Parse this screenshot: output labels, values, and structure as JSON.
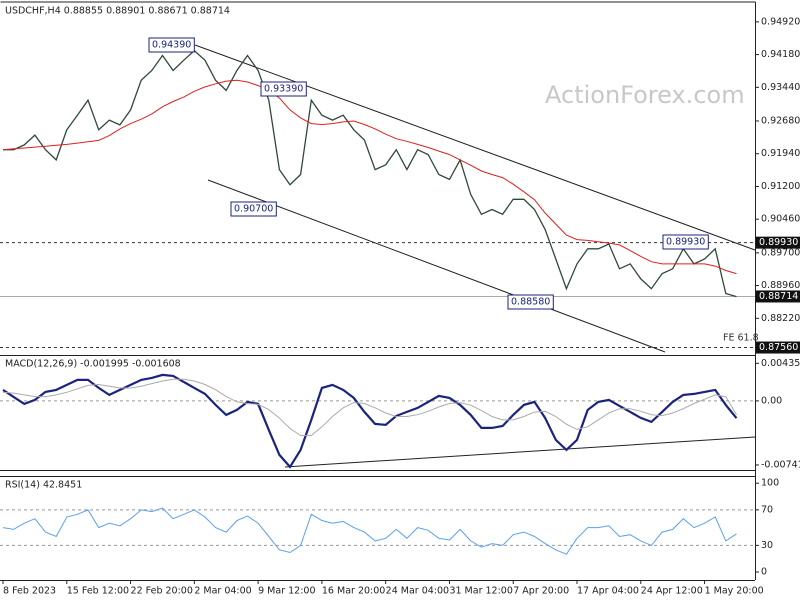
{
  "chart_data": [
    {
      "type": "line",
      "title": "USDCHF,H4  0.88855 0.88901 0.88671 0.88714",
      "watermark": "ActionForex.com",
      "ylim": [
        0.87391,
        0.95346
      ],
      "yticks": [
        {
          "value": 0.9492,
          "label": "0.94920"
        },
        {
          "value": 0.9418,
          "label": "0.94180"
        },
        {
          "value": 0.9344,
          "label": "0.93440"
        },
        {
          "value": 0.9268,
          "label": "0.92680"
        },
        {
          "value": 0.9194,
          "label": "0.91940"
        },
        {
          "value": 0.912,
          "label": "0.91200"
        },
        {
          "value": 0.9046,
          "label": "0.90460"
        },
        {
          "value": 0.897,
          "label": "0.89700"
        },
        {
          "value": 0.8896,
          "label": "0.88960"
        },
        {
          "value": 0.8822,
          "label": "0.88220"
        }
      ],
      "series": [
        {
          "name": "USDCHF",
          "color": "#2e4a3a",
          "values": [
            0.9203,
            0.9203,
            0.9214,
            0.9236,
            0.9203,
            0.918,
            0.9248,
            0.9281,
            0.9315,
            0.9248,
            0.927,
            0.9259,
            0.9293,
            0.936,
            0.9382,
            0.9416,
            0.9382,
            0.9405,
            0.9427,
            0.9405,
            0.936,
            0.9337,
            0.9382,
            0.9416,
            0.9382,
            0.9315,
            0.9158,
            0.9124,
            0.9147,
            0.9315,
            0.9281,
            0.927,
            0.9281,
            0.9248,
            0.9225,
            0.9158,
            0.9169,
            0.9203,
            0.9158,
            0.9203,
            0.9192,
            0.9147,
            0.9136,
            0.918,
            0.9102,
            0.9057,
            0.9068,
            0.9057,
            0.9091,
            0.9091,
            0.9068,
            0.9023,
            0.8956,
            0.8889,
            0.8945,
            0.8979,
            0.8979,
            0.899,
            0.8934,
            0.8945,
            0.8911,
            0.8889,
            0.8923,
            0.8934,
            0.8979,
            0.8945,
            0.8956,
            0.8979,
            0.8878,
            0.8871
          ]
        },
        {
          "name": "MA",
          "color": "#e02020",
          "values": [
            0.9203,
            0.9205,
            0.9207,
            0.9209,
            0.9211,
            0.9213,
            0.9215,
            0.9218,
            0.9221,
            0.9224,
            0.9235,
            0.925,
            0.9262,
            0.9272,
            0.9284,
            0.93,
            0.9312,
            0.9322,
            0.9335,
            0.9345,
            0.9352,
            0.9358,
            0.936,
            0.9356,
            0.9348,
            0.9337,
            0.932,
            0.9293,
            0.9275,
            0.9262,
            0.926,
            0.9262,
            0.9266,
            0.9268,
            0.926,
            0.925,
            0.9238,
            0.9228,
            0.9222,
            0.9215,
            0.9208,
            0.92,
            0.9192,
            0.918,
            0.9168,
            0.9155,
            0.9147,
            0.914,
            0.9125,
            0.9108,
            0.909,
            0.906,
            0.9035,
            0.901,
            0.9,
            0.8998,
            0.8995,
            0.8992,
            0.8988,
            0.8975,
            0.8962,
            0.895,
            0.8945,
            0.8945,
            0.8945,
            0.8945,
            0.8945,
            0.894,
            0.893,
            0.8923
          ]
        }
      ],
      "levels": [
        {
          "value": 0.8993,
          "label": "0.89930",
          "style": "dashed"
        },
        {
          "value": 0.88714,
          "label": "0.88714",
          "style": "solid"
        },
        {
          "value": 0.8756,
          "label": "0.87560",
          "style": "dashed"
        }
      ],
      "annotations": [
        "0.94390",
        "0.93390",
        "0.90700",
        "0.88580",
        "0.89930",
        "FE 61.8"
      ]
    },
    {
      "type": "line",
      "title": "MACD(12,26,9) -0.001995 -0.001608",
      "ylim": [
        -0.008,
        0.0052
      ],
      "yticks": [
        0.004354,
        {
          "value": 0,
          "label": "0.00"
        },
        -0.007417
      ],
      "levels": [
        0
      ],
      "series": [
        {
          "name": "MACD",
          "color": "#1a237e",
          "width": 2.2,
          "values": [
            0.00127,
            0.00046,
            -0.00035,
            0.00012,
            0.00104,
            0.00127,
            0.00185,
            0.00243,
            0.00243,
            0.00151,
            0.00069,
            0.00127,
            0.00185,
            0.00243,
            0.00266,
            0.00301,
            0.0029,
            0.0022,
            0.00151,
            0.00081,
            -0.00046,
            -0.00162,
            -0.00104,
            -0.00012,
            -0.00035,
            -0.00336,
            -0.00625,
            -0.00764,
            -0.00567,
            -0.0022,
            0.00151,
            0.00185,
            0.00127,
            0.00035,
            -0.00127,
            -0.00266,
            -0.00278,
            -0.00174,
            -0.00127,
            -0.00081,
            -0.00012,
            0.00058,
            0.00035,
            -0.00046,
            -0.00162,
            -0.00313,
            -0.00313,
            -0.0029,
            -0.00162,
            -0.00046,
            -0.00012,
            -0.00197,
            -0.00452,
            -0.00567,
            -0.00452,
            -0.00104,
            -0.00012,
            0.00012,
            -0.00058,
            -0.00127,
            -0.00197,
            -0.00243,
            -0.00127,
            -0.00012,
            0.00069,
            0.00081,
            0.00104,
            0.00127,
            -0.00046,
            -0.002
          ]
        },
        {
          "name": "Signal",
          "color": "#aaaaaa",
          "width": 1,
          "values": [
            0.001,
            0.0009,
            0.0007,
            0.0005,
            0.0005,
            0.0007,
            0.001,
            0.0014,
            0.0018,
            0.0019,
            0.0017,
            0.0015,
            0.0015,
            0.0017,
            0.002,
            0.0023,
            0.0025,
            0.0025,
            0.0023,
            0.0019,
            0.0013,
            0.0005,
            -0.0001,
            -0.0003,
            -0.0004,
            -0.001,
            -0.002,
            -0.0032,
            -0.004,
            -0.004,
            -0.003,
            -0.0018,
            -0.0008,
            -0.0002,
            -0.0003,
            -0.0008,
            -0.0014,
            -0.0018,
            -0.0018,
            -0.0016,
            -0.0012,
            -0.0007,
            -0.0003,
            -0.0002,
            -0.0005,
            -0.0011,
            -0.0018,
            -0.0022,
            -0.0022,
            -0.0018,
            -0.0013,
            -0.0012,
            -0.0018,
            -0.0027,
            -0.0033,
            -0.003,
            -0.0022,
            -0.0014,
            -0.0009,
            -0.0009,
            -0.0012,
            -0.0016,
            -0.0017,
            -0.0014,
            -0.0009,
            -0.0003,
            0.0002,
            0.0007,
            0.0005,
            -0.0016
          ]
        }
      ]
    },
    {
      "type": "line",
      "title": "RSI(14) 42.8451",
      "ylim": [
        -9,
        107
      ],
      "yticks": [
        100,
        70,
        30,
        0
      ],
      "levels": [
        70,
        30
      ],
      "categories": [
        "8 Feb 2023",
        null,
        null,
        null,
        null,
        null,
        "15 Feb 12:00",
        null,
        null,
        null,
        null,
        null,
        "22 Feb 20:00",
        null,
        null,
        null,
        null,
        null,
        "2 Mar 04:00",
        null,
        null,
        null,
        null,
        null,
        "9 Mar 12:00",
        null,
        null,
        null,
        null,
        null,
        "16 Mar 20:00",
        null,
        null,
        null,
        null,
        null,
        "24 Mar 04:00",
        null,
        null,
        null,
        null,
        null,
        "31 Mar 12:00",
        null,
        null,
        null,
        null,
        null,
        "7 Apr 20:00",
        null,
        null,
        null,
        null,
        null,
        "17 Apr 04:00",
        null,
        null,
        null,
        null,
        null,
        "24 Apr 12:00",
        null,
        null,
        null,
        null,
        null,
        "1 May 20:00",
        null,
        null,
        null
      ],
      "series": [
        {
          "name": "RSI",
          "color": "#5aa0f0",
          "width": 1,
          "values": [
            50,
            48,
            55,
            60,
            45,
            40,
            62,
            65,
            70,
            50,
            55,
            52,
            60,
            70,
            68,
            72,
            60,
            65,
            70,
            62,
            50,
            45,
            58,
            63,
            55,
            40,
            25,
            22,
            30,
            65,
            58,
            55,
            57,
            50,
            45,
            35,
            38,
            48,
            38,
            50,
            47,
            38,
            36,
            48,
            35,
            28,
            32,
            30,
            42,
            45,
            40,
            32,
            25,
            20,
            38,
            50,
            50,
            52,
            40,
            42,
            35,
            30,
            45,
            48,
            60,
            50,
            55,
            62,
            35,
            43
          ]
        }
      ]
    }
  ]
}
